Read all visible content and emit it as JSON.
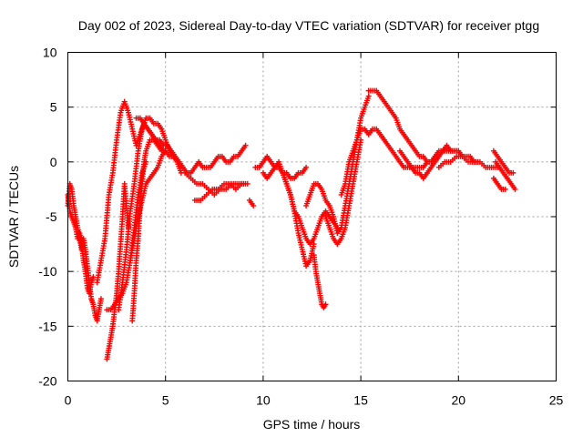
{
  "chart_data": {
    "type": "scatter",
    "title": "Day 002 of 2023, Sidereal Day-to-day VTEC variation (SDTVAR) for receiver ptgg",
    "xlabel": "GPS time / hours",
    "ylabel": "SDTVAR / TECUs",
    "xlim": [
      0,
      25
    ],
    "ylim": [
      -20,
      10
    ],
    "xticks": [
      "0",
      "5",
      "10",
      "15",
      "20",
      "25"
    ],
    "yticks": [
      "-20",
      "-15",
      "-10",
      "-5",
      "0",
      "5",
      "10"
    ],
    "grid": true,
    "marker": "plus",
    "color": "#ff0000",
    "series": [
      {
        "name": "s1",
        "x": [
          0.0,
          0.1,
          0.2,
          0.3,
          0.4,
          0.5,
          0.6,
          0.7,
          0.8,
          0.9,
          1.0,
          1.1,
          1.2,
          1.3,
          1.4,
          1.5,
          1.6,
          1.7
        ],
        "y": [
          -4,
          -2,
          -2.5,
          -4,
          -5,
          -6,
          -7,
          -8,
          -7,
          -8,
          -9.5,
          -11,
          -12.5,
          -13,
          -14,
          -14.5,
          -13.5,
          -12.5
        ]
      },
      {
        "name": "s2",
        "x": [
          0.0,
          0.1,
          0.2,
          0.3,
          0.4,
          0.5,
          0.6,
          0.7,
          0.8,
          0.9,
          1.0,
          1.1,
          1.2,
          1.3
        ],
        "y": [
          -3,
          -4.5,
          -5,
          -5.5,
          -6,
          -7,
          -6.5,
          -7.5,
          -9,
          -10,
          -11.5,
          -12,
          -11,
          -10.5
        ]
      },
      {
        "name": "s3",
        "x": [
          1.5,
          1.7,
          1.9,
          2.1,
          2.3,
          2.5,
          2.7,
          2.9,
          3.1,
          3.3,
          3.5,
          3.7,
          3.9,
          4.1,
          4.3,
          4.5,
          4.7,
          4.9,
          5.0
        ],
        "y": [
          -11,
          -9,
          -7,
          -3,
          -1,
          2,
          4.5,
          5.5,
          4.5,
          3,
          1.5,
          2.5,
          3.5,
          3,
          2.5,
          2,
          1.5,
          1,
          1
        ]
      },
      {
        "name": "s4",
        "x": [
          2.0,
          2.1,
          2.2,
          2.3,
          2.4,
          2.5,
          2.6,
          2.7,
          2.8,
          2.9,
          3.0,
          3.1
        ],
        "y": [
          -18,
          -17,
          -16,
          -15,
          -13.5,
          -12,
          -10,
          -7.5,
          -5,
          -2,
          -4,
          -6
        ]
      },
      {
        "name": "s5",
        "x": [
          2.0,
          2.2,
          2.4,
          2.6,
          2.8,
          3.0,
          3.2,
          3.4,
          3.6,
          3.8,
          4.0
        ],
        "y": [
          -13.5,
          -13.5,
          -13,
          -12.5,
          -12,
          -11,
          -9,
          -6,
          -3,
          -1,
          0
        ]
      },
      {
        "name": "s6",
        "x": [
          2.6,
          2.8,
          3.0,
          3.2,
          3.4,
          3.6,
          3.8,
          4.0,
          4.2,
          4.4,
          4.6,
          4.8,
          5.0,
          5.2,
          5.4,
          5.6,
          5.8
        ],
        "y": [
          -13.5,
          -11,
          -8,
          -4.5,
          -2,
          1,
          3,
          4,
          4,
          3.5,
          3.5,
          3,
          2,
          1,
          0.5,
          0,
          -1
        ]
      },
      {
        "name": "s7",
        "x": [
          3.2,
          3.4,
          3.6,
          3.8,
          4.0,
          4.2,
          4.4,
          4.6,
          4.8,
          5.0
        ],
        "y": [
          -9,
          -7,
          -5,
          -3.5,
          -2,
          -1.5,
          -1,
          -0.5,
          0.5,
          1
        ]
      },
      {
        "name": "s8",
        "x": [
          3.3,
          3.4,
          3.5,
          3.6,
          3.7,
          3.8,
          3.9,
          4.0,
          4.2,
          4.4,
          4.6,
          4.8,
          5.0,
          5.2,
          5.4
        ],
        "y": [
          -14.5,
          -12,
          -9,
          -7,
          -4,
          -2,
          0,
          1,
          2,
          2,
          1.5,
          1,
          1,
          0.5,
          0.5
        ]
      },
      {
        "name": "s9",
        "x": [
          3.5,
          3.7,
          3.9,
          4.1,
          4.3,
          4.5,
          4.7,
          4.9,
          5.1,
          5.3,
          5.5,
          5.7,
          5.9,
          6.1,
          6.3,
          6.5,
          6.7,
          6.9,
          7.1,
          7.3,
          7.5,
          7.7,
          7.9,
          8.1,
          8.3,
          8.5,
          8.7,
          8.9,
          9.1
        ],
        "y": [
          4,
          4,
          3.5,
          3,
          2.5,
          2,
          2,
          1.5,
          1.5,
          1,
          0.5,
          0,
          -0.5,
          -1,
          -1,
          -0.5,
          0,
          -0.5,
          -0.5,
          -0.5,
          0,
          0.5,
          0.5,
          0,
          0,
          0.5,
          0.5,
          1,
          1.5
        ]
      },
      {
        "name": "s10",
        "x": [
          6.0,
          6.3,
          6.6,
          6.9,
          7.2,
          7.5,
          7.8,
          8.1,
          8.4,
          8.7,
          9.0
        ],
        "y": [
          -1,
          -1.5,
          -2,
          -2,
          -2.5,
          -3,
          -2.5,
          -2.5,
          -2,
          -2,
          -2
        ]
      },
      {
        "name": "s11",
        "x": [
          6.5,
          6.8,
          7.1,
          7.4,
          7.7,
          8.0,
          8.3,
          8.6,
          8.9,
          9.2
        ],
        "y": [
          -3.5,
          -3.5,
          -3,
          -2.5,
          -2.5,
          -2,
          -2,
          -2.5,
          -2,
          -2
        ]
      },
      {
        "name": "s12",
        "x": [
          9.3,
          9.5
        ],
        "y": [
          -3.5,
          -4
        ]
      },
      {
        "name": "s13",
        "x": [
          9.6,
          9.8,
          10.0,
          10.2,
          10.4,
          10.6,
          10.8,
          11.0,
          11.2,
          11.4,
          11.6,
          11.8,
          12.0,
          12.2
        ],
        "y": [
          -0.5,
          -0.5,
          0,
          0.5,
          0,
          -0.5,
          -0.5,
          -1,
          -1,
          -1.5,
          -1.5,
          -1,
          -1,
          -0.5
        ]
      },
      {
        "name": "s14",
        "x": [
          10.0,
          10.2,
          10.4,
          10.6,
          10.8,
          11.0,
          11.2,
          11.4,
          11.6,
          11.8,
          12.0,
          12.2,
          12.4,
          12.6,
          12.8,
          13.0,
          13.2,
          13.4,
          13.6,
          13.8
        ],
        "y": [
          -1,
          -1.5,
          -1,
          -0.5,
          0,
          -1,
          -2,
          -3,
          -4.5,
          -5,
          -6,
          -7,
          -7.5,
          -7,
          -6,
          -5,
          -4.5,
          -5,
          -5.5,
          -6
        ]
      },
      {
        "name": "s15",
        "x": [
          11.0,
          11.2,
          11.4,
          11.6,
          11.8,
          12.0,
          12.2,
          12.4,
          12.6
        ],
        "y": [
          -1,
          -2,
          -3,
          -4.5,
          -6.5,
          -8,
          -9.5,
          -9,
          -7.5
        ]
      },
      {
        "name": "s16",
        "x": [
          12.2,
          12.4,
          12.6,
          12.8,
          13.0,
          13.2,
          13.4,
          13.6,
          13.8,
          14.0,
          14.2,
          14.4,
          14.6,
          14.8,
          15.0,
          15.2,
          15.4
        ],
        "y": [
          -4,
          -3,
          -2,
          -2,
          -2.5,
          -3.5,
          -4,
          -5,
          -6.5,
          -6,
          -4,
          -2,
          0,
          2,
          4,
          5,
          6
        ]
      },
      {
        "name": "s17",
        "x": [
          12.6,
          12.7,
          12.8,
          12.9,
          13.0,
          13.1,
          13.2
        ],
        "y": [
          -8.5,
          -10,
          -11,
          -12,
          -13,
          -13.3,
          -13
        ]
      },
      {
        "name": "s18",
        "x": [
          13.2,
          13.4,
          13.6,
          13.8,
          14.0,
          14.2,
          14.4,
          14.6,
          14.8,
          15.0
        ],
        "y": [
          -5,
          -6,
          -7,
          -7.5,
          -7,
          -6,
          -4,
          -2,
          0,
          2
        ]
      },
      {
        "name": "s19",
        "x": [
          14.0,
          14.2,
          14.4,
          14.6,
          14.8,
          15.0,
          15.2,
          15.4,
          15.6,
          15.8,
          16.0,
          16.2
        ],
        "y": [
          -3,
          -2,
          0,
          1,
          2,
          3,
          3,
          2.5,
          3,
          3,
          2.5,
          2
        ]
      },
      {
        "name": "s20",
        "x": [
          15.4,
          15.6,
          15.8,
          16.0,
          16.2,
          16.4,
          16.6,
          16.8,
          17.0,
          17.2,
          17.4,
          17.6,
          17.8,
          18.0,
          18.2,
          18.4,
          18.6,
          18.8,
          19.0
        ],
        "y": [
          6.5,
          6.5,
          6.5,
          6,
          5.5,
          5,
          4.5,
          4,
          3,
          2.5,
          2,
          1.5,
          1,
          0.5,
          0.5,
          0,
          0,
          0.5,
          0.5
        ]
      },
      {
        "name": "s21",
        "x": [
          16.2,
          16.4,
          16.6,
          16.8,
          17.0,
          17.2,
          17.4,
          17.6,
          17.8,
          18.0,
          18.2,
          18.4,
          18.6,
          18.8,
          19.0,
          19.2,
          19.4,
          19.6,
          19.8,
          20.0
        ],
        "y": [
          2,
          1.5,
          1,
          0.5,
          0,
          -0.5,
          -0.5,
          -0.5,
          -0.5,
          -0.5,
          -0.5,
          0,
          0,
          0.5,
          1,
          1,
          1.5,
          1,
          1,
          1
        ]
      },
      {
        "name": "s22",
        "x": [
          17.0,
          17.2,
          17.4,
          17.6,
          17.8,
          18.0,
          18.2,
          18.4,
          18.6,
          18.8,
          19.0,
          19.2,
          19.4,
          19.6,
          19.8,
          20.0,
          20.2,
          20.4,
          20.6,
          20.8,
          21.0
        ],
        "y": [
          1,
          0.5,
          0,
          -0.5,
          -1,
          -1,
          -1.5,
          -1,
          -0.5,
          0,
          0.5,
          1,
          1,
          1,
          1,
          1,
          0.5,
          0.5,
          0.5,
          0,
          0
        ]
      },
      {
        "name": "s23",
        "x": [
          19.0,
          19.3,
          19.6,
          19.9,
          20.2,
          20.5,
          20.8,
          21.1,
          21.4,
          21.7,
          22.0
        ],
        "y": [
          -0.5,
          0,
          0,
          0.5,
          0.5,
          0,
          0,
          0,
          -0.5,
          -0.5,
          -0.5
        ]
      },
      {
        "name": "s24",
        "x": [
          21.8,
          22.0,
          22.2,
          22.4,
          22.6,
          22.8
        ],
        "y": [
          1,
          0.5,
          0,
          -0.5,
          -1,
          -1
        ]
      },
      {
        "name": "s25",
        "x": [
          21.9,
          22.1,
          22.3,
          22.5,
          22.7,
          22.9
        ],
        "y": [
          0,
          -0.5,
          -1,
          -1.5,
          -2,
          -2.5
        ]
      },
      {
        "name": "s26",
        "x": [
          21.8,
          22.0,
          22.2,
          22.4
        ],
        "y": [
          -1.5,
          -2,
          -2.5,
          -2.5
        ]
      }
    ]
  }
}
